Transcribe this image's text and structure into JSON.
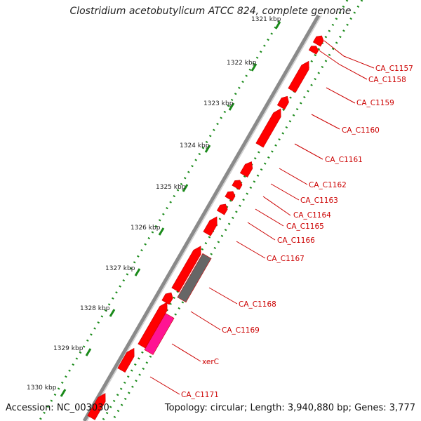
{
  "title": "Clostridium acetobutylicum ATCC 824, complete genome",
  "footer": {
    "accession": "Accession: NC_003030",
    "topology": "Topology: circular; Length: 3,940,880 bp; Genes: 3,777"
  },
  "ruler_labels": [
    "1321 kbp",
    "1322 kbp",
    "1323 kbp",
    "1324 kbp",
    "1325 kbp",
    "1326 kbp",
    "1327 kbp",
    "1328 kbp",
    "1329 kbp",
    "1330 kbp"
  ],
  "gene_labels": [
    "CA_C1157",
    "CA_C1158",
    "CA_C1159",
    "CA_C1160",
    "CA_C1161",
    "CA_C1162",
    "CA_C1163",
    "CA_C1164",
    "CA_C1165",
    "CA_C1166",
    "CA_C1167",
    "CA_C1168",
    "CA_C1169",
    "xerC",
    "CA_C1171"
  ],
  "colors": {
    "cds": "#ff0000",
    "cds_dark": "#cc0000",
    "other": "#666666",
    "xerC": "#ff1493",
    "backbone": "#8a8a8a",
    "ticks": "#1a8a1a",
    "label": "#cc0000"
  }
}
